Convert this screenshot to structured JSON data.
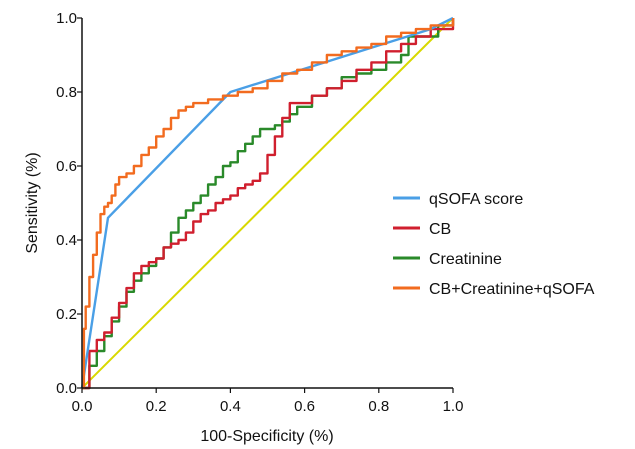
{
  "chart_data": {
    "type": "line",
    "xlabel": "100-Specificity (%)",
    "ylabel": "Sensitivity (%)",
    "xlim": [
      0,
      1
    ],
    "ylim": [
      0,
      1
    ],
    "xticks": [
      "0.0",
      "0.2",
      "0.4",
      "0.6",
      "0.8",
      "1.0"
    ],
    "yticks": [
      "0.0",
      "0.2",
      "0.4",
      "0.6",
      "0.8",
      "1.0"
    ],
    "grid": false,
    "legend_position": "right",
    "reference_line": {
      "color": "#d8d800",
      "x": [
        0,
        1
      ],
      "y": [
        0,
        1
      ]
    },
    "series": [
      {
        "name": "qSOFA score",
        "color": "#4a9fe6",
        "x": [
          0,
          0.07,
          0.4,
          0.94,
          1.0
        ],
        "y": [
          0,
          0.46,
          0.8,
          0.97,
          1.0
        ]
      },
      {
        "name": "CB",
        "color": "#d01f2e",
        "x": [
          0,
          0.02,
          0.04,
          0.06,
          0.08,
          0.1,
          0.12,
          0.14,
          0.16,
          0.18,
          0.2,
          0.22,
          0.24,
          0.26,
          0.28,
          0.3,
          0.32,
          0.34,
          0.36,
          0.38,
          0.4,
          0.42,
          0.44,
          0.46,
          0.48,
          0.5,
          0.52,
          0.54,
          0.56,
          0.58,
          0.62,
          0.66,
          0.7,
          0.74,
          0.78,
          0.82,
          0.86,
          0.9,
          0.94,
          1.0
        ],
        "y": [
          0,
          0.1,
          0.13,
          0.15,
          0.19,
          0.23,
          0.27,
          0.31,
          0.33,
          0.34,
          0.35,
          0.38,
          0.39,
          0.4,
          0.42,
          0.45,
          0.47,
          0.48,
          0.5,
          0.51,
          0.52,
          0.54,
          0.55,
          0.56,
          0.58,
          0.63,
          0.68,
          0.73,
          0.77,
          0.77,
          0.79,
          0.81,
          0.83,
          0.86,
          0.88,
          0.91,
          0.93,
          0.95,
          0.97,
          1.0
        ]
      },
      {
        "name": "Creatinine",
        "color": "#2a8a2a",
        "x": [
          0,
          0.02,
          0.04,
          0.06,
          0.08,
          0.1,
          0.12,
          0.14,
          0.16,
          0.18,
          0.2,
          0.22,
          0.24,
          0.26,
          0.28,
          0.3,
          0.32,
          0.34,
          0.36,
          0.38,
          0.4,
          0.42,
          0.44,
          0.46,
          0.48,
          0.5,
          0.52,
          0.54,
          0.56,
          0.58,
          0.62,
          0.66,
          0.7,
          0.74,
          0.78,
          0.82,
          0.86,
          0.88,
          0.9,
          0.94,
          0.96,
          1.0
        ],
        "y": [
          0,
          0.06,
          0.1,
          0.14,
          0.18,
          0.22,
          0.26,
          0.29,
          0.31,
          0.33,
          0.35,
          0.38,
          0.42,
          0.46,
          0.48,
          0.5,
          0.52,
          0.55,
          0.57,
          0.6,
          0.61,
          0.64,
          0.66,
          0.68,
          0.7,
          0.7,
          0.71,
          0.72,
          0.74,
          0.76,
          0.79,
          0.81,
          0.84,
          0.85,
          0.86,
          0.88,
          0.9,
          0.95,
          0.95,
          0.95,
          0.98,
          1.0
        ]
      },
      {
        "name": "CB+Creatinine+qSOFA",
        "color": "#f26b1f",
        "x": [
          0,
          0.005,
          0.01,
          0.02,
          0.03,
          0.04,
          0.05,
          0.06,
          0.07,
          0.08,
          0.09,
          0.1,
          0.12,
          0.14,
          0.16,
          0.18,
          0.2,
          0.22,
          0.24,
          0.26,
          0.28,
          0.3,
          0.34,
          0.38,
          0.42,
          0.46,
          0.5,
          0.54,
          0.58,
          0.62,
          0.66,
          0.7,
          0.74,
          0.78,
          0.82,
          0.86,
          0.9,
          0.94,
          1.0
        ],
        "y": [
          0,
          0.16,
          0.22,
          0.3,
          0.36,
          0.42,
          0.47,
          0.49,
          0.5,
          0.52,
          0.55,
          0.57,
          0.58,
          0.6,
          0.63,
          0.65,
          0.68,
          0.7,
          0.73,
          0.75,
          0.76,
          0.77,
          0.78,
          0.79,
          0.8,
          0.81,
          0.83,
          0.85,
          0.86,
          0.88,
          0.9,
          0.91,
          0.92,
          0.93,
          0.95,
          0.96,
          0.97,
          0.98,
          1.0
        ]
      }
    ]
  }
}
